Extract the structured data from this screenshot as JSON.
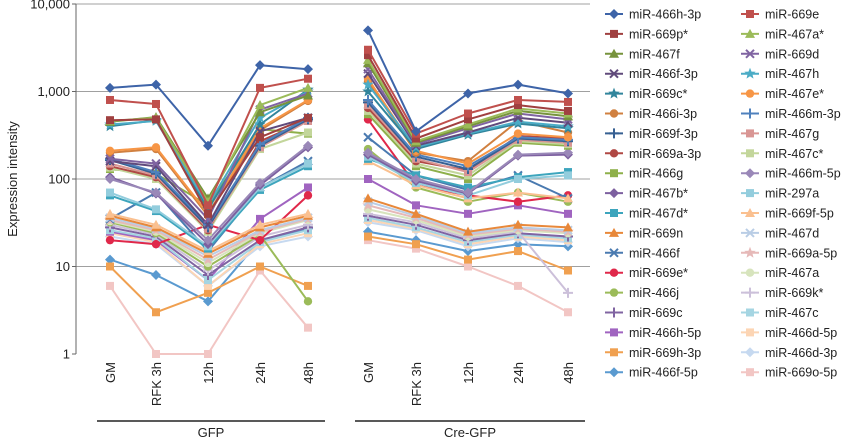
{
  "chart_data": {
    "type": "line",
    "ylabel": "Expression intensity",
    "yscale": "log",
    "ylim": [
      1,
      10000
    ],
    "yticks": [
      "1",
      "10",
      "100",
      "1,000",
      "10,000"
    ],
    "groups": [
      {
        "name": "GFP",
        "categories": [
          "GM",
          "RFK 3h",
          "12h",
          "24h",
          "48h"
        ]
      },
      {
        "name": "Cre-GFP",
        "categories": [
          "GM",
          "RFK 3h",
          "12h",
          "24h",
          "48h"
        ]
      }
    ],
    "series": [
      {
        "name": "miR-466h-3p",
        "color": "#3e64a8",
        "marker": "diamond",
        "gfp": [
          1100,
          1200,
          240,
          2000,
          1800
        ],
        "cre": [
          5000,
          350,
          950,
          1200,
          950
        ]
      },
      {
        "name": "miR-669e",
        "color": "#c0504d",
        "marker": "square",
        "gfp": [
          800,
          720,
          50,
          1100,
          1400
        ],
        "cre": [
          3000,
          330,
          560,
          800,
          760
        ]
      },
      {
        "name": "miR-669p*",
        "color": "#a04040",
        "marker": "square",
        "gfp": [
          470,
          480,
          40,
          300,
          500
        ],
        "cre": [
          2600,
          290,
          480,
          700,
          600
        ]
      },
      {
        "name": "miR-467a*",
        "color": "#9bbb59",
        "marker": "triangle",
        "gfp": [
          460,
          500,
          55,
          700,
          1100
        ],
        "cre": [
          2300,
          270,
          420,
          640,
          560
        ]
      },
      {
        "name": "miR-467f",
        "color": "#77933c",
        "marker": "triangle",
        "gfp": [
          450,
          510,
          60,
          580,
          900
        ],
        "cre": [
          2100,
          260,
          400,
          600,
          520
        ]
      },
      {
        "name": "miR-669d",
        "color": "#8064a2",
        "marker": "x",
        "gfp": [
          170,
          150,
          35,
          620,
          950
        ],
        "cre": [
          1800,
          250,
          380,
          560,
          480
        ]
      },
      {
        "name": "miR-466f-3p",
        "color": "#604a7b",
        "marker": "x",
        "gfp": [
          160,
          140,
          30,
          350,
          500
        ],
        "cre": [
          1600,
          240,
          340,
          500,
          440
        ]
      },
      {
        "name": "miR-467h",
        "color": "#4bacc6",
        "marker": "star",
        "gfp": [
          420,
          460,
          50,
          500,
          1000
        ],
        "cre": [
          1200,
          230,
          330,
          450,
          400
        ]
      },
      {
        "name": "miR-669c*",
        "color": "#31859c",
        "marker": "star",
        "gfp": [
          400,
          470,
          45,
          420,
          1050
        ],
        "cre": [
          1000,
          220,
          320,
          430,
          380
        ]
      },
      {
        "name": "miR-467e*",
        "color": "#f79646",
        "marker": "circle",
        "gfp": [
          210,
          230,
          40,
          380,
          800
        ],
        "cre": [
          1400,
          210,
          150,
          330,
          300
        ]
      },
      {
        "name": "miR-466i-3p",
        "color": "#d08040",
        "marker": "circle",
        "gfp": [
          200,
          220,
          38,
          360,
          780
        ],
        "cre": [
          1300,
          200,
          160,
          460,
          340
        ]
      },
      {
        "name": "miR-466m-3p",
        "color": "#4f81bd",
        "marker": "plus",
        "gfp": [
          170,
          120,
          30,
          250,
          500
        ],
        "cre": [
          800,
          190,
          140,
          300,
          280
        ]
      },
      {
        "name": "miR-669f-3p",
        "color": "#376092",
        "marker": "plus",
        "gfp": [
          165,
          115,
          28,
          240,
          480
        ],
        "cre": [
          750,
          180,
          130,
          290,
          270
        ]
      },
      {
        "name": "miR-467g",
        "color": "#d99694",
        "marker": "square",
        "gfp": [
          150,
          110,
          27,
          230,
          460
        ],
        "cre": [
          700,
          170,
          120,
          280,
          260
        ]
      },
      {
        "name": "miR-669a-3p",
        "color": "#b04844",
        "marker": "circle",
        "gfp": [
          140,
          105,
          26,
          270,
          470
        ],
        "cre": [
          650,
          160,
          125,
          310,
          290
        ]
      },
      {
        "name": "miR-467c*",
        "color": "#c3d69b",
        "marker": "square",
        "gfp": [
          135,
          100,
          25,
          220,
          340
        ],
        "cre": [
          600,
          150,
          110,
          270,
          250
        ]
      },
      {
        "name": "miR-466g",
        "color": "#8eb04a",
        "marker": "square",
        "gfp": [
          130,
          115,
          50,
          370,
          330
        ],
        "cre": [
          550,
          140,
          100,
          260,
          240
        ]
      },
      {
        "name": "miR-466m-5p",
        "color": "#9a88b8",
        "marker": "diamond",
        "gfp": [
          100,
          70,
          20,
          90,
          240
        ],
        "cre": [
          200,
          100,
          70,
          190,
          200
        ]
      },
      {
        "name": "miR-467b*",
        "color": "#7d60a0",
        "marker": "diamond",
        "gfp": [
          105,
          68,
          18,
          85,
          230
        ],
        "cre": [
          190,
          95,
          68,
          185,
          190
        ]
      },
      {
        "name": "miR-297a",
        "color": "#93cddd",
        "marker": "square",
        "gfp": [
          70,
          45,
          17,
          80,
          150
        ],
        "cre": [
          180,
          90,
          65,
          100,
          110
        ]
      },
      {
        "name": "miR-467d*",
        "color": "#3da5bd",
        "marker": "square",
        "gfp": [
          65,
          43,
          16,
          75,
          140
        ],
        "cre": [
          170,
          110,
          80,
          105,
          120
        ]
      },
      {
        "name": "miR-669f-5p",
        "color": "#fac090",
        "marker": "triangle",
        "gfp": [
          40,
          30,
          15,
          30,
          40
        ],
        "cre": [
          160,
          85,
          60,
          70,
          60
        ]
      },
      {
        "name": "miR-669n",
        "color": "#e8883a",
        "marker": "triangle",
        "gfp": [
          38,
          28,
          14,
          28,
          38
        ],
        "cre": [
          60,
          40,
          25,
          30,
          28
        ]
      },
      {
        "name": "miR-467d",
        "color": "#b9cde5",
        "marker": "x",
        "gfp": [
          36,
          27,
          13,
          26,
          36
        ],
        "cre": [
          55,
          38,
          24,
          28,
          26
        ]
      },
      {
        "name": "miR-466f",
        "color": "#4a7ab0",
        "marker": "x",
        "gfp": [
          35,
          70,
          15,
          80,
          160
        ],
        "cre": [
          300,
          110,
          75,
          110,
          60
        ]
      },
      {
        "name": "miR-669a-5p",
        "color": "#e6b9b8",
        "marker": "star",
        "gfp": [
          34,
          26,
          12,
          25,
          35
        ],
        "cre": [
          50,
          36,
          23,
          27,
          25
        ]
      },
      {
        "name": "miR-669e*",
        "color": "#e0284a",
        "marker": "circle",
        "gfp": [
          20,
          18,
          30,
          20,
          65
        ],
        "cre": [
          480,
          85,
          65,
          55,
          65
        ]
      },
      {
        "name": "miR-467a",
        "color": "#d7e4bd",
        "marker": "circle",
        "gfp": [
          33,
          25,
          11,
          24,
          34
        ],
        "cre": [
          45,
          34,
          22,
          26,
          24
        ]
      },
      {
        "name": "miR-466j",
        "color": "#9bbb59",
        "marker": "circle",
        "gfp": [
          32,
          24,
          10,
          23,
          4
        ],
        "cre": [
          220,
          80,
          55,
          70,
          55
        ]
      },
      {
        "name": "miR-669k*",
        "color": "#ccc0da",
        "marker": "plus",
        "gfp": [
          30,
          23,
          9,
          22,
          30
        ],
        "cre": [
          40,
          32,
          21,
          25,
          5
        ]
      },
      {
        "name": "miR-669c",
        "color": "#8064a2",
        "marker": "plus",
        "gfp": [
          28,
          22,
          8,
          20,
          28
        ],
        "cre": [
          38,
          30,
          20,
          24,
          22
        ]
      },
      {
        "name": "miR-467c",
        "color": "#a5d5e2",
        "marker": "square",
        "gfp": [
          26,
          21,
          7,
          19,
          26
        ],
        "cre": [
          36,
          28,
          19,
          23,
          21
        ]
      },
      {
        "name": "miR-466h-5p",
        "color": "#a064c0",
        "marker": "square",
        "gfp": [
          25,
          20,
          7,
          35,
          80
        ],
        "cre": [
          100,
          50,
          40,
          50,
          40
        ]
      },
      {
        "name": "miR-466d-5p",
        "color": "#fcd5b4",
        "marker": "square",
        "gfp": [
          24,
          19,
          6,
          18,
          24
        ],
        "cre": [
          34,
          27,
          18,
          22,
          20
        ]
      },
      {
        "name": "miR-669h-3p",
        "color": "#f0a050",
        "marker": "square",
        "gfp": [
          10,
          3,
          5,
          10,
          6
        ],
        "cre": [
          22,
          18,
          12,
          15,
          9
        ]
      },
      {
        "name": "miR-466d-3p",
        "color": "#c6d9f0",
        "marker": "diamond",
        "gfp": [
          22,
          18,
          6,
          17,
          22
        ],
        "cre": [
          32,
          26,
          17,
          21,
          19
        ]
      },
      {
        "name": "miR-466f-5p",
        "color": "#5a9ad0",
        "marker": "diamond",
        "gfp": [
          12,
          8,
          4,
          20,
          27
        ],
        "cre": [
          25,
          20,
          15,
          18,
          17
        ]
      },
      {
        "name": "miR-669o-5p",
        "color": "#f2c6c4",
        "marker": "square",
        "gfp": [
          6,
          1,
          1,
          9,
          2
        ],
        "cre": [
          20,
          16,
          10,
          6,
          3
        ]
      }
    ]
  }
}
